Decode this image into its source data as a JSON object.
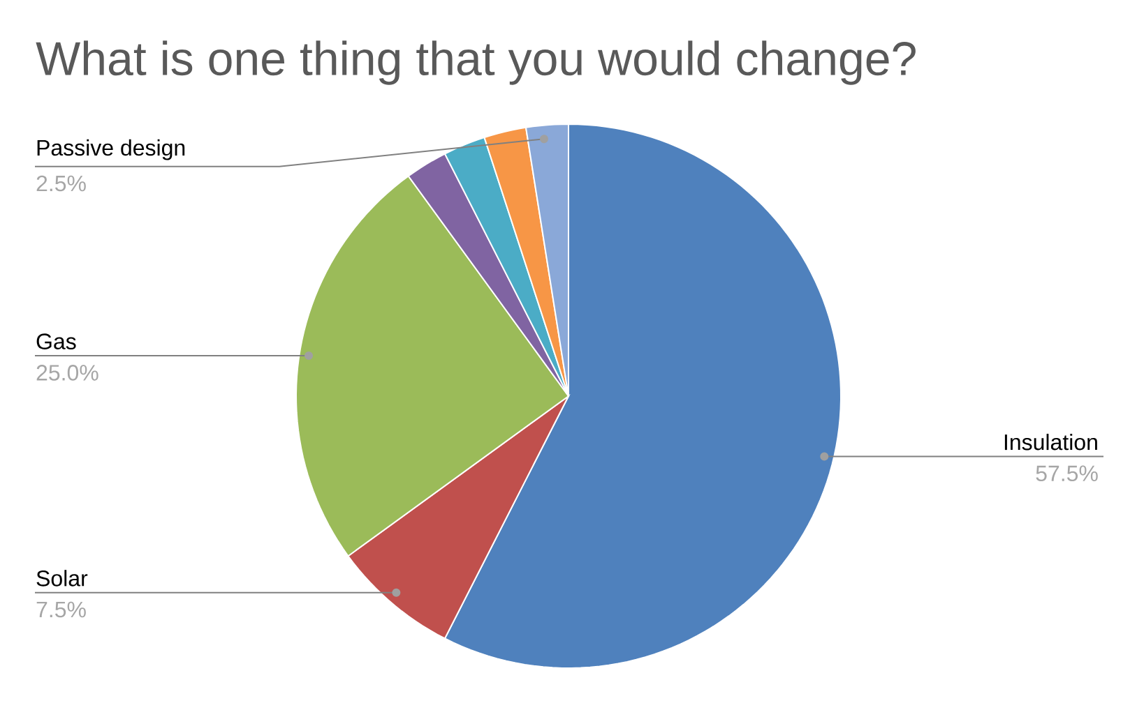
{
  "chart_data": {
    "type": "pie",
    "title": "What is one thing that you would change?",
    "categories": [
      "Insulation",
      "Solar",
      "Gas",
      null,
      null,
      null,
      "Passive design"
    ],
    "values": [
      57.5,
      7.5,
      25.0,
      2.5,
      2.5,
      2.5,
      2.5
    ],
    "value_labels": [
      "57.5%",
      "7.5%",
      "25.0%",
      null,
      null,
      null,
      "2.5%"
    ],
    "colors": [
      "#4f81bd",
      "#c0504d",
      "#9bbb59",
      "#8064a2",
      "#4bacc6",
      "#f79646",
      "#8aa8d8"
    ]
  }
}
